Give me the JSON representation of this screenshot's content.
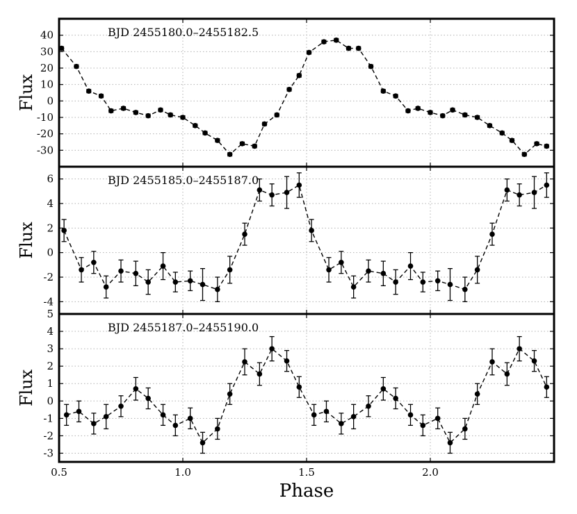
{
  "chart_data": [
    {
      "type": "scatter",
      "title": "BJD 2455180.0–2455182.5",
      "ylabel": "Flux",
      "xlabel": "",
      "xlim": [
        0.5,
        2.5
      ],
      "ylim": [
        -40,
        50
      ],
      "yticks": [
        -30,
        -20,
        -10,
        0,
        10,
        20,
        30,
        40
      ],
      "xticks": [
        0.5,
        1.0,
        1.5,
        2.0
      ],
      "grid": true,
      "error_bars": true,
      "x": [
        0.51,
        0.57,
        0.62,
        0.67,
        0.71,
        0.76,
        0.81,
        0.86,
        0.91,
        0.95,
        1.0,
        1.05,
        1.09,
        1.14,
        1.19,
        1.24,
        1.29,
        1.33,
        1.38,
        1.43,
        1.47,
        1.51,
        1.57,
        1.62,
        1.67,
        1.71,
        1.76,
        1.81,
        1.86,
        1.91,
        1.95,
        2.0,
        2.05,
        2.09,
        2.14,
        2.19,
        2.24,
        2.29,
        2.33,
        2.38,
        2.43,
        2.47
      ],
      "y": [
        32,
        21,
        6,
        3,
        -6,
        -4.5,
        -7,
        -9,
        -5.5,
        -8.5,
        -10,
        -15,
        -19.5,
        -24,
        -32.5,
        -26,
        -27.5,
        -14,
        -8.5,
        7,
        15.5,
        29.5,
        36,
        37,
        32,
        32,
        21,
        6,
        3,
        -6,
        -4.5,
        -7,
        -9,
        -5.5,
        -8.5,
        -10,
        -15,
        -19.5,
        -24,
        -32.5,
        -26,
        -27.5
      ],
      "yerr": [
        1,
        1,
        1,
        1,
        1,
        1,
        1,
        1,
        1,
        1,
        1,
        1,
        1,
        1,
        1,
        1,
        1,
        1,
        1,
        1,
        1,
        1,
        1,
        1,
        1,
        1,
        1,
        1,
        1,
        1,
        1,
        1,
        1,
        1,
        1,
        1,
        1,
        1,
        1,
        1,
        1,
        1
      ]
    },
    {
      "type": "scatter",
      "title": "BJD 2455185.0–2455187.0",
      "ylabel": "Flux",
      "xlabel": "",
      "xlim": [
        0.5,
        2.5
      ],
      "ylim": [
        -5,
        7
      ],
      "yticks": [
        -4,
        -2,
        0,
        2,
        4,
        6
      ],
      "xticks": [
        0.5,
        1.0,
        1.5,
        2.0
      ],
      "grid": true,
      "error_bars": true,
      "x": [
        0.52,
        0.59,
        0.64,
        0.69,
        0.75,
        0.81,
        0.86,
        0.92,
        0.97,
        1.03,
        1.08,
        1.14,
        1.19,
        1.25,
        1.31,
        1.36,
        1.42,
        1.47,
        1.52,
        1.59,
        1.64,
        1.69,
        1.75,
        1.81,
        1.86,
        1.92,
        1.97,
        2.03,
        2.08,
        2.14,
        2.19,
        2.25,
        2.31,
        2.36,
        2.42,
        2.47
      ],
      "y": [
        1.8,
        -1.4,
        -0.8,
        -2.8,
        -1.5,
        -1.7,
        -2.4,
        -1.1,
        -2.4,
        -2.3,
        -2.6,
        -3.0,
        -1.4,
        1.5,
        5.1,
        4.7,
        4.9,
        5.5,
        1.8,
        -1.4,
        -0.8,
        -2.8,
        -1.5,
        -1.7,
        -2.4,
        -1.1,
        -2.4,
        -2.3,
        -2.6,
        -3.0,
        -1.4,
        1.5,
        5.1,
        4.7,
        4.9,
        5.5
      ],
      "yerr": [
        0.9,
        1.0,
        0.9,
        0.9,
        0.9,
        1.0,
        1.0,
        1.1,
        0.8,
        0.8,
        1.3,
        1.0,
        1.1,
        0.9,
        0.9,
        0.9,
        1.3,
        1.0,
        0.9,
        1.0,
        0.9,
        0.9,
        0.9,
        1.0,
        1.0,
        1.1,
        0.8,
        0.8,
        1.3,
        1.0,
        1.1,
        0.9,
        0.9,
        0.9,
        1.3,
        1.0
      ]
    },
    {
      "type": "scatter",
      "title": "BJD 2455187.0–2455190.0",
      "ylabel": "Flux",
      "xlabel": "Phase",
      "xlim": [
        0.5,
        2.5
      ],
      "ylim": [
        -3.5,
        5
      ],
      "yticks": [
        -3,
        -2,
        -1,
        0,
        1,
        2,
        3,
        4,
        5
      ],
      "xticks": [
        0.5,
        1.0,
        1.5,
        2.0
      ],
      "xtick_labels": [
        "0.5",
        "1.0",
        "1.5",
        "2.0"
      ],
      "grid": true,
      "error_bars": true,
      "x": [
        0.53,
        0.58,
        0.64,
        0.69,
        0.75,
        0.81,
        0.86,
        0.92,
        0.97,
        1.03,
        1.08,
        1.14,
        1.19,
        1.25,
        1.31,
        1.36,
        1.42,
        1.47,
        1.53,
        1.58,
        1.64,
        1.69,
        1.75,
        1.81,
        1.86,
        1.92,
        1.97,
        2.03,
        2.08,
        2.14,
        2.19,
        2.25,
        2.31,
        2.36,
        2.42,
        2.47
      ],
      "y": [
        -0.8,
        -0.6,
        -1.3,
        -0.9,
        -0.3,
        0.7,
        0.15,
        -0.8,
        -1.4,
        -1.0,
        -2.4,
        -1.6,
        0.4,
        2.25,
        1.55,
        3.0,
        2.3,
        0.8,
        -0.8,
        -0.6,
        -1.3,
        -0.9,
        -0.3,
        0.7,
        0.15,
        -0.8,
        -1.4,
        -1.0,
        -2.4,
        -1.6,
        0.4,
        2.25,
        1.55,
        3.0,
        2.3,
        0.8
      ],
      "yerr": [
        0.6,
        0.6,
        0.6,
        0.7,
        0.6,
        0.65,
        0.6,
        0.6,
        0.6,
        0.6,
        0.6,
        0.6,
        0.6,
        0.75,
        0.65,
        0.7,
        0.6,
        0.6,
        0.6,
        0.6,
        0.6,
        0.7,
        0.6,
        0.65,
        0.6,
        0.6,
        0.6,
        0.6,
        0.6,
        0.6,
        0.6,
        0.75,
        0.65,
        0.7,
        0.6,
        0.6
      ]
    }
  ]
}
